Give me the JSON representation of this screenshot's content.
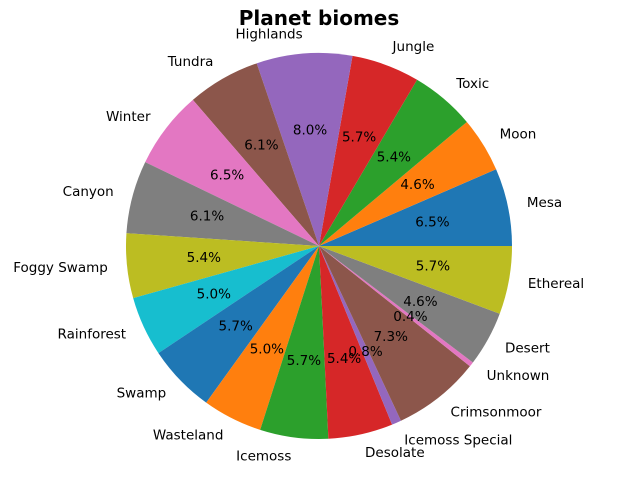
{
  "chart_data": {
    "type": "pie",
    "title": "Planet biomes",
    "start_angle_deg": 0,
    "direction": "counterclockwise",
    "categories": [
      "Mesa",
      "Moon",
      "Toxic",
      "Jungle",
      "Highlands",
      "Tundra",
      "Winter",
      "Canyon",
      "Foggy Swamp",
      "Rainforest",
      "Swamp",
      "Wasteland",
      "Icemoss",
      "Desolate",
      "Icemoss Special",
      "Crimsonmoor",
      "Unknown",
      "Desert",
      "Ethereal"
    ],
    "values": [
      6.5,
      4.6,
      5.4,
      5.7,
      8.0,
      6.1,
      6.5,
      6.1,
      5.4,
      5.0,
      5.7,
      5.0,
      5.7,
      5.4,
      0.8,
      7.3,
      0.4,
      4.6,
      5.7
    ],
    "value_labels": [
      "6.5%",
      "4.6%",
      "5.4%",
      "5.7%",
      "8.0%",
      "6.1%",
      "6.5%",
      "6.1%",
      "5.4%",
      "5.0%",
      "5.7%",
      "5.0%",
      "5.7%",
      "5.4%",
      "0.8%",
      "7.3%",
      "0.4%",
      "4.6%",
      "5.7%"
    ],
    "colors": [
      "#1f77b4",
      "#ff7f0e",
      "#2ca02c",
      "#d62728",
      "#9467bd",
      "#8c564b",
      "#e377c2",
      "#7f7f7f",
      "#bcbd22",
      "#17becf",
      "#1f77b4",
      "#ff7f0e",
      "#2ca02c",
      "#d62728",
      "#9467bd",
      "#8c564b",
      "#e377c2",
      "#7f7f7f",
      "#bcbd22"
    ],
    "legend": "none"
  }
}
